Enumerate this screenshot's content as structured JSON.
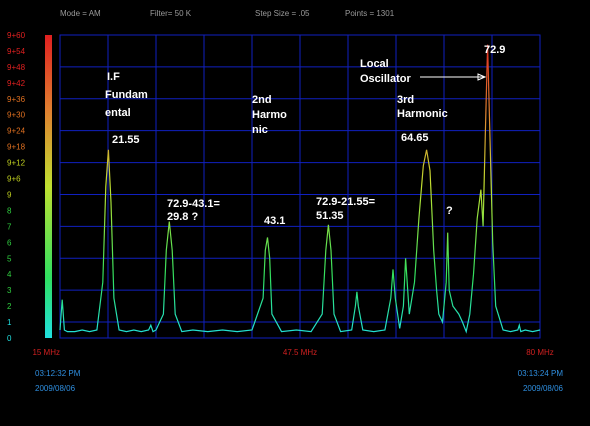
{
  "header": {
    "mode": "Mode = AM",
    "filter": "Filter= 50 K",
    "step": "Step Size = .05",
    "points": "Points = 1301"
  },
  "chart_data": {
    "type": "line",
    "xlim": [
      15,
      80
    ],
    "xticks": [
      {
        "value": 15,
        "label": "15 MHz"
      },
      {
        "value": 47.5,
        "label": "47.5 MHz"
      },
      {
        "value": 80,
        "label": "80 MHz"
      }
    ],
    "ylim": [
      0,
      19
    ],
    "yticks": [
      0,
      1,
      2,
      3,
      4,
      5,
      6,
      7,
      8,
      9,
      {
        "value": 10,
        "label": "9+6"
      },
      {
        "value": 11,
        "label": "9+12"
      },
      {
        "value": 12,
        "label": "9+18"
      },
      {
        "value": 13,
        "label": "9+24"
      },
      {
        "value": 14,
        "label": "9+30"
      },
      {
        "value": 15,
        "label": "9+36"
      },
      {
        "value": 16,
        "label": "9+42"
      },
      {
        "value": 17,
        "label": "9+48"
      },
      {
        "value": 18,
        "label": "9+54"
      },
      {
        "value": 19,
        "label": "9+60"
      }
    ],
    "grid": true,
    "x": [
      15,
      15.3,
      15.6,
      16,
      17,
      18,
      19,
      20,
      20.8,
      21.2,
      21.55,
      21.9,
      22.3,
      23,
      24,
      25,
      26,
      27,
      27.3,
      27.6,
      28,
      29,
      29.4,
      29.8,
      30.2,
      30.6,
      31.5,
      33,
      35,
      37,
      39,
      41,
      42.5,
      42.8,
      43.1,
      43.4,
      43.7,
      45,
      47,
      49,
      50.5,
      51,
      51.35,
      51.7,
      52.1,
      53,
      54.5,
      55,
      55.2,
      55.4,
      56,
      57.5,
      59,
      59.8,
      60.1,
      60.4,
      61,
      61.5,
      61.8,
      62.3,
      63,
      63.6,
      64.2,
      64.65,
      65.1,
      65.6,
      66,
      66.3,
      66.8,
      67.3,
      67.5,
      67.7,
      68.2,
      69,
      69.5,
      70,
      70.5,
      71,
      71.5,
      72,
      72.3,
      72.6,
      72.9,
      73.2,
      73.6,
      74,
      75,
      76,
      77,
      77.2,
      77.4,
      78,
      79,
      80
    ],
    "y": [
      0.5,
      2.4,
      0.5,
      0.4,
      0.4,
      0.5,
      0.4,
      0.5,
      3.5,
      9.5,
      11.8,
      8.5,
      2.5,
      0.5,
      0.4,
      0.5,
      0.4,
      0.5,
      0.8,
      0.4,
      0.5,
      1.5,
      5.5,
      7.3,
      5.5,
      1.5,
      0.4,
      0.5,
      0.4,
      0.5,
      0.4,
      0.5,
      2.5,
      5.5,
      6.3,
      5,
      1.5,
      0.4,
      0.5,
      0.4,
      1.5,
      5.5,
      7.1,
      5.5,
      1.5,
      0.4,
      0.5,
      2,
      2.9,
      2,
      0.5,
      0.4,
      0.5,
      2.5,
      4.3,
      2.5,
      0.6,
      2,
      5,
      1.5,
      3.5,
      7.5,
      10.8,
      11.8,
      10.5,
      5.5,
      3,
      1.5,
      1,
      3.5,
      6.6,
      3,
      2,
      1.5,
      1,
      0.4,
      1.5,
      4,
      7.5,
      9.3,
      7,
      13,
      18.4,
      13,
      6,
      2,
      0.5,
      0.4,
      0.5,
      0.8,
      0.4,
      0.5,
      0.4,
      0.5
    ]
  },
  "annotations": [
    "I.F",
    "Fundam",
    "ental",
    "21.55",
    "72.9-43.1=",
    "29.8 ?",
    "2nd",
    "Harmo",
    "nic",
    "43.1",
    "72.9-21.55=",
    "51.35",
    "3rd",
    "Harmonic",
    "64.65",
    "?",
    "Local",
    "Oscillator",
    "72.9"
  ],
  "footer": {
    "start_time": "03:12:32 PM",
    "start_date": "2009/08/06",
    "end_time": "03:13:24 PM",
    "end_date": "2009/08/06"
  }
}
